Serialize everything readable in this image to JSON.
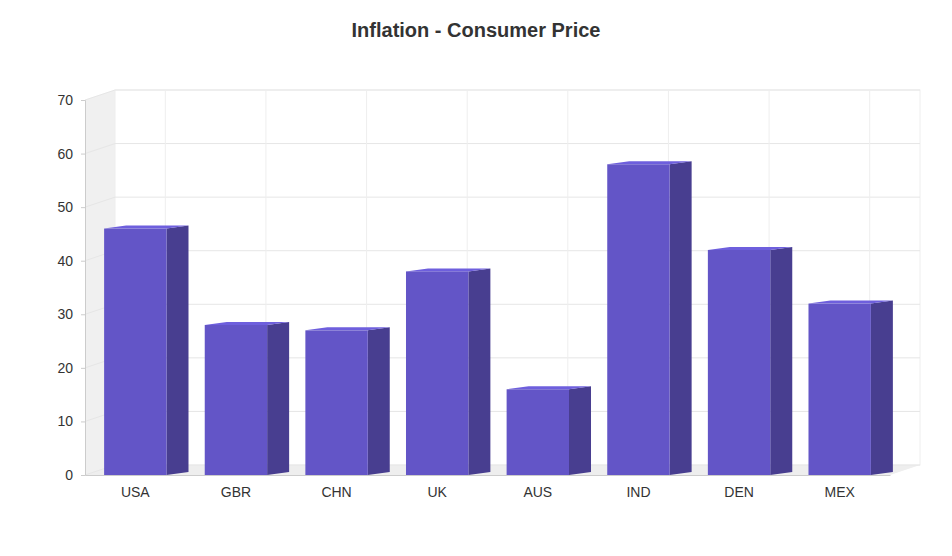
{
  "chart_data": {
    "type": "bar",
    "title": "Inflation - Consumer Price",
    "categories": [
      "USA",
      "GBR",
      "CHN",
      "UK",
      "AUS",
      "IND",
      "DEN",
      "MEX"
    ],
    "values": [
      46,
      28,
      27,
      38,
      16,
      58,
      42,
      32
    ],
    "color": "#6355c7",
    "ylim": [
      0,
      70
    ],
    "yticks": [
      0,
      10,
      20,
      30,
      40,
      50,
      60,
      70
    ],
    "grid": true
  }
}
